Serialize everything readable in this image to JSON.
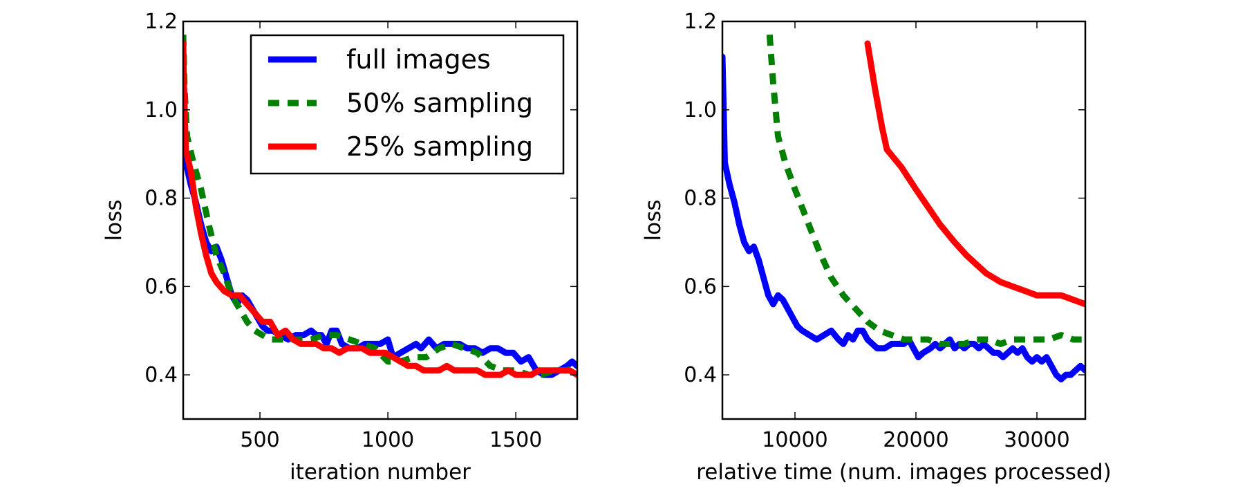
{
  "chart_data": [
    {
      "type": "line",
      "xlabel": "iteration number",
      "ylabel": "loss",
      "xlim": [
        200,
        1740
      ],
      "ylim": [
        0.3,
        1.2
      ],
      "xticks": [
        500,
        1000,
        1500
      ],
      "yticks": [
        0.4,
        0.6,
        0.8,
        1.0,
        1.2
      ],
      "xtick_labels": [
        "500",
        "1000",
        "1500"
      ],
      "ytick_labels": [
        "0.4",
        "0.6",
        "0.8",
        "1.0",
        "1.2"
      ],
      "legend_position": "upper-right",
      "series": [
        {
          "name": "full images",
          "color": "#0000ff",
          "style": "solid",
          "x": [
            200,
            205,
            210,
            230,
            250,
            270,
            290,
            310,
            330,
            350,
            370,
            390,
            410,
            430,
            450,
            470,
            490,
            510,
            530,
            550,
            580,
            610,
            640,
            670,
            700,
            720,
            740,
            760,
            780,
            800,
            820,
            850,
            880,
            910,
            940,
            970,
            1000,
            1020,
            1050,
            1080,
            1110,
            1130,
            1160,
            1190,
            1220,
            1250,
            1280,
            1310,
            1340,
            1370,
            1400,
            1430,
            1460,
            1490,
            1520,
            1550,
            1580,
            1610,
            1640,
            1670,
            1700,
            1720,
            1740
          ],
          "y": [
            1.12,
            1.0,
            0.88,
            0.83,
            0.79,
            0.74,
            0.7,
            0.68,
            0.69,
            0.66,
            0.62,
            0.58,
            0.56,
            0.58,
            0.57,
            0.55,
            0.53,
            0.51,
            0.5,
            0.5,
            0.49,
            0.48,
            0.49,
            0.49,
            0.5,
            0.49,
            0.49,
            0.47,
            0.5,
            0.5,
            0.47,
            0.46,
            0.46,
            0.47,
            0.47,
            0.47,
            0.48,
            0.44,
            0.45,
            0.46,
            0.47,
            0.46,
            0.48,
            0.46,
            0.47,
            0.47,
            0.47,
            0.46,
            0.46,
            0.45,
            0.46,
            0.46,
            0.45,
            0.45,
            0.43,
            0.44,
            0.41,
            0.4,
            0.4,
            0.41,
            0.42,
            0.43,
            0.42
          ]
        },
        {
          "name": "50% sampling",
          "color": "#008000",
          "style": "dashed",
          "x": [
            200,
            205,
            215,
            240,
            270,
            300,
            330,
            360,
            390,
            420,
            450,
            480,
            510,
            540,
            570,
            600,
            650,
            700,
            750,
            800,
            850,
            900,
            950,
            1000,
            1050,
            1100,
            1150,
            1200,
            1250,
            1300,
            1350,
            1400,
            1450,
            1500,
            1550,
            1600,
            1650,
            1700,
            1740
          ],
          "y": [
            1.17,
            1.05,
            0.94,
            0.88,
            0.82,
            0.74,
            0.67,
            0.63,
            0.58,
            0.55,
            0.52,
            0.5,
            0.49,
            0.48,
            0.48,
            0.48,
            0.48,
            0.48,
            0.49,
            0.49,
            0.48,
            0.47,
            0.46,
            0.43,
            0.43,
            0.44,
            0.44,
            0.46,
            0.47,
            0.46,
            0.45,
            0.42,
            0.41,
            0.41,
            0.4,
            0.4,
            0.41,
            0.41,
            0.42
          ]
        },
        {
          "name": "25% sampling",
          "color": "#ff0000",
          "style": "solid",
          "x": [
            200,
            203,
            210,
            230,
            250,
            270,
            290,
            310,
            330,
            360,
            390,
            420,
            450,
            480,
            510,
            540,
            570,
            600,
            630,
            660,
            690,
            720,
            750,
            780,
            810,
            840,
            870,
            900,
            930,
            960,
            990,
            1020,
            1050,
            1080,
            1110,
            1140,
            1170,
            1200,
            1230,
            1260,
            1290,
            1320,
            1350,
            1380,
            1410,
            1440,
            1470,
            1500,
            1530,
            1560,
            1590,
            1620,
            1650,
            1680,
            1710,
            1740
          ],
          "y": [
            1.15,
            1.05,
            0.91,
            0.86,
            0.78,
            0.72,
            0.67,
            0.63,
            0.61,
            0.59,
            0.58,
            0.58,
            0.56,
            0.54,
            0.52,
            0.52,
            0.49,
            0.5,
            0.48,
            0.47,
            0.47,
            0.47,
            0.46,
            0.46,
            0.45,
            0.46,
            0.46,
            0.46,
            0.45,
            0.45,
            0.45,
            0.44,
            0.43,
            0.42,
            0.42,
            0.41,
            0.41,
            0.41,
            0.42,
            0.41,
            0.41,
            0.41,
            0.41,
            0.4,
            0.4,
            0.4,
            0.41,
            0.4,
            0.4,
            0.4,
            0.41,
            0.41,
            0.41,
            0.41,
            0.41,
            0.4
          ]
        }
      ]
    },
    {
      "type": "line",
      "xlabel": "relative time (num. images processed)",
      "ylabel": "loss",
      "xlim": [
        4000,
        34000
      ],
      "ylim": [
        0.3,
        1.2
      ],
      "xticks": [
        10000,
        20000,
        30000
      ],
      "yticks": [
        0.4,
        0.6,
        0.8,
        1.0,
        1.2
      ],
      "xtick_labels": [
        "10000",
        "20000",
        "30000"
      ],
      "ytick_labels": [
        "0.4",
        "0.6",
        "0.8",
        "1.0",
        "1.2"
      ],
      "series": [
        {
          "name": "full images",
          "color": "#0000ff",
          "style": "solid",
          "x": [
            4000,
            4100,
            4200,
            4600,
            5000,
            5400,
            5800,
            6200,
            6600,
            7000,
            7400,
            7800,
            8200,
            8600,
            9000,
            9400,
            9800,
            10200,
            10600,
            11200,
            11800,
            12400,
            13000,
            13600,
            14000,
            14400,
            14800,
            15200,
            15600,
            16000,
            16400,
            16800,
            17400,
            18000,
            18600,
            19000,
            19400,
            19800,
            20200,
            20600,
            21200,
            21600,
            22000,
            22400,
            22800,
            23200,
            23600,
            24000,
            24400,
            24800,
            25200,
            25600,
            26000,
            26400,
            26800,
            27200,
            27600,
            28000,
            28400,
            28800,
            29200,
            29600,
            30000,
            30400,
            30800,
            31200,
            31600,
            32000,
            32400,
            32800,
            33200,
            33600,
            34000
          ],
          "y": [
            1.12,
            1.0,
            0.88,
            0.83,
            0.79,
            0.74,
            0.7,
            0.68,
            0.69,
            0.66,
            0.62,
            0.58,
            0.56,
            0.58,
            0.57,
            0.55,
            0.53,
            0.51,
            0.5,
            0.49,
            0.48,
            0.49,
            0.5,
            0.48,
            0.47,
            0.49,
            0.48,
            0.5,
            0.5,
            0.48,
            0.47,
            0.46,
            0.46,
            0.47,
            0.47,
            0.47,
            0.48,
            0.46,
            0.44,
            0.45,
            0.46,
            0.47,
            0.46,
            0.47,
            0.48,
            0.46,
            0.47,
            0.46,
            0.47,
            0.47,
            0.46,
            0.47,
            0.46,
            0.45,
            0.45,
            0.44,
            0.45,
            0.46,
            0.45,
            0.46,
            0.44,
            0.43,
            0.44,
            0.43,
            0.44,
            0.42,
            0.4,
            0.39,
            0.4,
            0.4,
            0.41,
            0.42,
            0.41
          ]
        },
        {
          "name": "50% sampling",
          "color": "#008000",
          "style": "dashed",
          "x": [
            7900,
            8200,
            8600,
            9200,
            10000,
            11000,
            12000,
            13000,
            14000,
            15000,
            16000,
            17000,
            18000,
            19000,
            20000,
            21000,
            22000,
            23000,
            24000,
            25000,
            26000,
            27000,
            28000,
            29000,
            30000,
            31000,
            32000,
            33000,
            34000
          ],
          "y": [
            1.17,
            1.06,
            0.94,
            0.88,
            0.82,
            0.75,
            0.68,
            0.62,
            0.58,
            0.55,
            0.52,
            0.5,
            0.49,
            0.48,
            0.48,
            0.48,
            0.47,
            0.47,
            0.47,
            0.48,
            0.48,
            0.47,
            0.48,
            0.48,
            0.48,
            0.48,
            0.49,
            0.48,
            0.48
          ]
        },
        {
          "name": "25% sampling",
          "color": "#ff0000",
          "style": "solid",
          "x": [
            16000,
            16600,
            17200,
            17600,
            18800,
            20000,
            21000,
            22000,
            23200,
            24200,
            25000,
            25800,
            27000,
            28000,
            29000,
            30000,
            31000,
            32000,
            33000,
            34000
          ],
          "y": [
            1.15,
            1.05,
            0.96,
            0.91,
            0.87,
            0.82,
            0.78,
            0.74,
            0.7,
            0.67,
            0.65,
            0.63,
            0.61,
            0.6,
            0.59,
            0.58,
            0.58,
            0.58,
            0.57,
            0.56
          ]
        }
      ]
    }
  ]
}
